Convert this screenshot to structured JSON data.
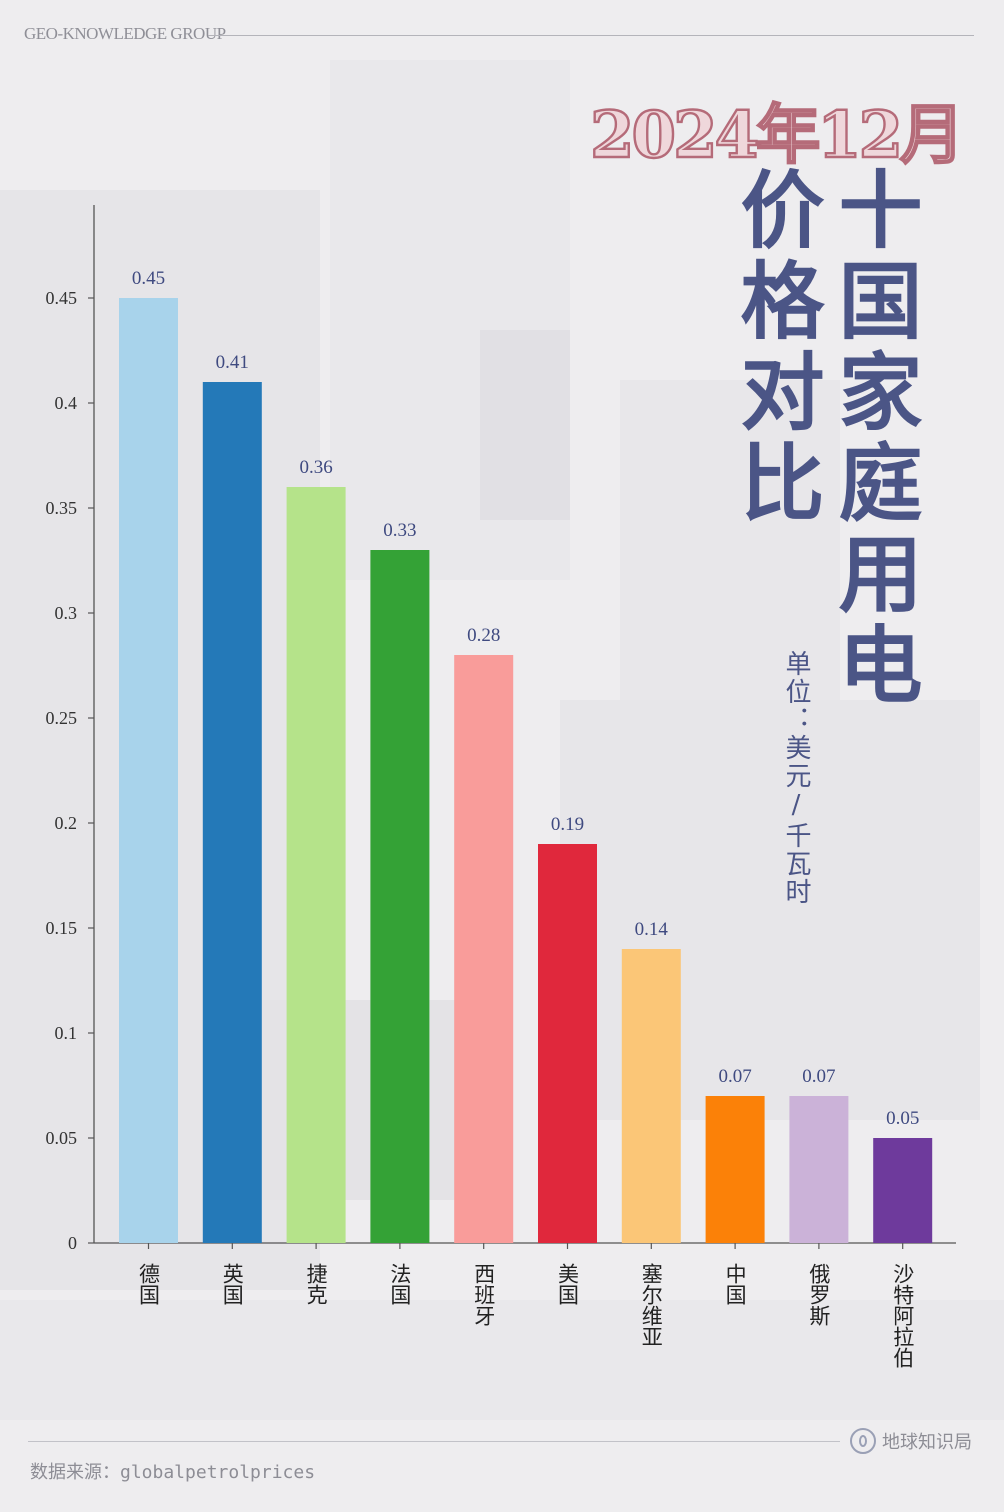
{
  "header": {
    "brand": "GEO-KNOWLEDGE GROUP",
    "date_title": "2024年12月",
    "title_col_1": "十国家庭用电",
    "title_col_2": "价格对比",
    "unit": "单位：美元/千瓦时"
  },
  "footer": {
    "source": "数据来源：globalpetrolprices",
    "logo_text": "地球知识局"
  },
  "colors": {
    "title": "#4b5586",
    "date_fill": "#efd7db",
    "date_stroke": "#b56b79",
    "axis": "#555555"
  },
  "chart_data": {
    "type": "bar",
    "categories": [
      "德国",
      "英国",
      "捷克",
      "法国",
      "西班牙",
      "美国",
      "塞尔维亚",
      "中国",
      "俄罗斯",
      "沙特阿拉伯"
    ],
    "values": [
      0.45,
      0.41,
      0.36,
      0.33,
      0.28,
      0.19,
      0.14,
      0.07,
      0.07,
      0.05
    ],
    "value_labels": [
      "0.45",
      "0.41",
      "0.36",
      "0.33",
      "0.28",
      "0.19",
      "0.14",
      "0.07",
      "0.07",
      "0.05"
    ],
    "colors": [
      "#a8d3eb",
      "#2479b8",
      "#b5e38a",
      "#34a236",
      "#f99c9a",
      "#e0283c",
      "#fbc677",
      "#fb8108",
      "#cbb2d8",
      "#6e3a9c"
    ],
    "yticks": [
      0,
      0.05,
      0.1,
      0.15,
      0.2,
      0.25,
      0.3,
      0.35,
      0.4,
      0.45
    ],
    "ytick_labels": [
      "0",
      "0.05",
      "0.1",
      "0.15",
      "0.2",
      "0.25",
      "0.3",
      "0.35",
      "0.4",
      "0.45"
    ],
    "ylim": [
      0,
      0.495
    ],
    "grid": false,
    "legend": "none"
  }
}
